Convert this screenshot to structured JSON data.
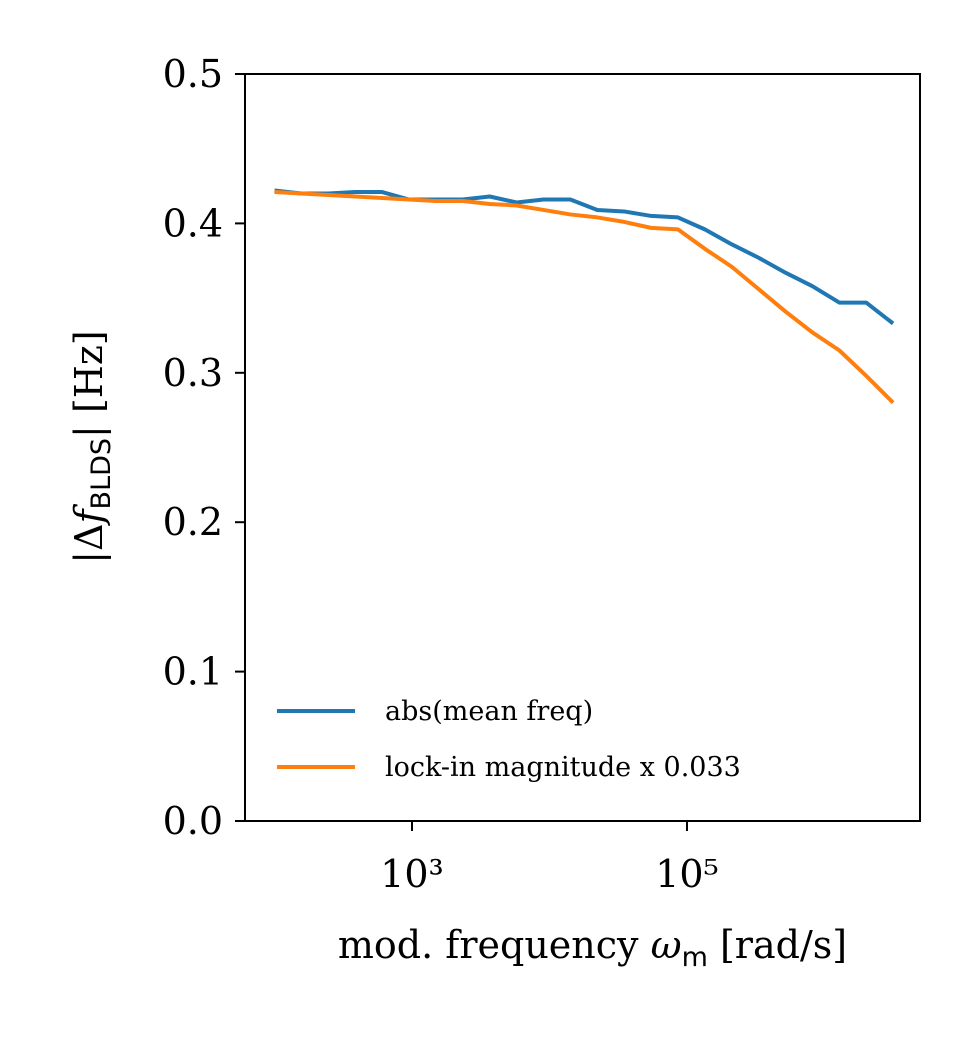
{
  "chart_data": {
    "type": "line",
    "xlabel": [
      "mod. frequency ",
      "ω",
      "m",
      " [rad/s]"
    ],
    "ylabel": [
      "|Δ",
      "f",
      "BLDS",
      "| [Hz]"
    ],
    "x": [
      100,
      157,
      246,
      386,
      606,
      951,
      1492,
      2341,
      3673,
      5762,
      9040,
      14183,
      22252,
      34911,
      54771,
      85930,
      134814,
      211505,
      331821,
      520578,
      816714,
      1281300,
      2010200,
      3153700
    ],
    "series": [
      {
        "name": "abs(mean freq)",
        "color": "#1f77b4",
        "values": [
          0.422,
          0.42,
          0.42,
          0.421,
          0.421,
          0.416,
          0.416,
          0.416,
          0.418,
          0.414,
          0.416,
          0.416,
          0.409,
          0.408,
          0.405,
          0.404,
          0.396,
          0.386,
          0.377,
          0.367,
          0.358,
          0.347,
          0.347,
          0.333
        ]
      },
      {
        "name": "lock-in magnitude x 0.033",
        "color": "#ff7f0e",
        "values": [
          0.421,
          0.42,
          0.419,
          0.418,
          0.417,
          0.416,
          0.415,
          0.415,
          0.413,
          0.412,
          0.409,
          0.406,
          0.404,
          0.401,
          0.397,
          0.396,
          0.383,
          0.371,
          0.356,
          0.341,
          0.327,
          0.315,
          0.298,
          0.28
        ]
      }
    ],
    "xlim": [
      61,
      4950000
    ],
    "xlog": true,
    "xticks": [
      {
        "value": 1000,
        "label": "10³"
      },
      {
        "value": 100000,
        "label": "10⁵"
      }
    ],
    "ylim": [
      0,
      0.5
    ],
    "yticks": [
      {
        "value": 0,
        "label": "0.0"
      },
      0.1,
      0.2,
      0.3,
      0.4,
      0.5
    ],
    "grid": false,
    "legend": "lower left"
  }
}
